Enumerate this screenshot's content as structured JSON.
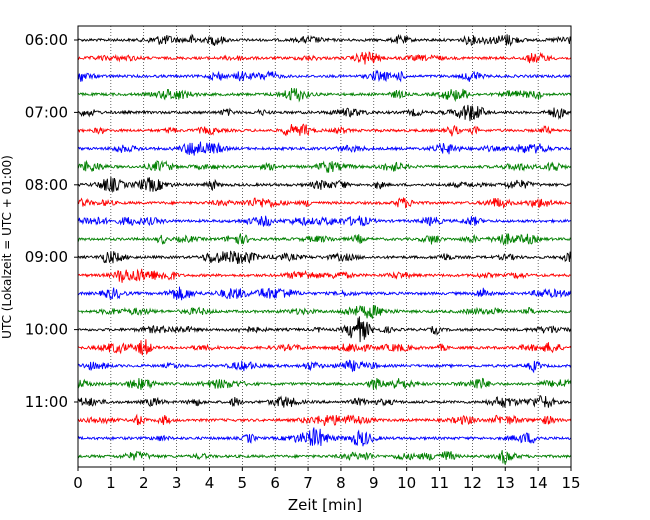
{
  "chart_data": {
    "type": "line",
    "xlabel": "Zeit  [min]",
    "ylabel": "UTC (Lokalzeit = UTC + 01:00)",
    "xlim": [
      0,
      15
    ],
    "x_ticks": [
      "0",
      "1",
      "2",
      "3",
      "4",
      "5",
      "6",
      "7",
      "8",
      "9",
      "10",
      "11",
      "12",
      "13",
      "14",
      "15"
    ],
    "y_ticks": [
      "06:00",
      "07:00",
      "08:00",
      "09:00",
      "10:00",
      "11:00"
    ],
    "grid": "vertical-dotted",
    "trace_interval_minutes": 15,
    "trace_colors": [
      "#000000",
      "#ff0000",
      "#0000ff",
      "#008000"
    ],
    "traces": [
      {
        "start": "06:00",
        "color": "#000000"
      },
      {
        "start": "06:15",
        "color": "#ff0000"
      },
      {
        "start": "06:30",
        "color": "#0000ff"
      },
      {
        "start": "06:45",
        "color": "#008000"
      },
      {
        "start": "07:00",
        "color": "#000000"
      },
      {
        "start": "07:15",
        "color": "#ff0000"
      },
      {
        "start": "07:30",
        "color": "#0000ff"
      },
      {
        "start": "07:45",
        "color": "#008000"
      },
      {
        "start": "08:00",
        "color": "#000000"
      },
      {
        "start": "08:15",
        "color": "#ff0000"
      },
      {
        "start": "08:30",
        "color": "#0000ff"
      },
      {
        "start": "08:45",
        "color": "#008000"
      },
      {
        "start": "09:00",
        "color": "#000000"
      },
      {
        "start": "09:15",
        "color": "#ff0000"
      },
      {
        "start": "09:30",
        "color": "#0000ff"
      },
      {
        "start": "09:45",
        "color": "#008000"
      },
      {
        "start": "10:00",
        "color": "#000000"
      },
      {
        "start": "10:15",
        "color": "#ff0000"
      },
      {
        "start": "10:30",
        "color": "#0000ff"
      },
      {
        "start": "10:45",
        "color": "#008000"
      },
      {
        "start": "11:00",
        "color": "#000000"
      },
      {
        "start": "11:15",
        "color": "#ff0000"
      },
      {
        "start": "11:30",
        "color": "#0000ff"
      },
      {
        "start": "11:45",
        "color": "#008000"
      }
    ]
  }
}
